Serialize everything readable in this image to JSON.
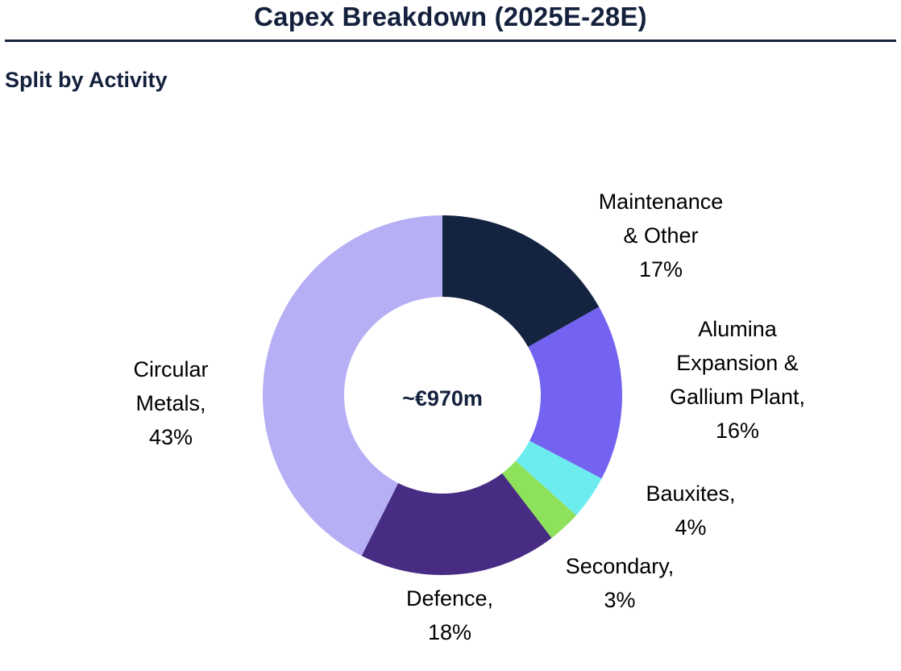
{
  "header": {
    "title": "Capex Breakdown (2025E-28E)",
    "subtitle": "Split by Activity"
  },
  "chart_data": {
    "type": "pie",
    "donut": true,
    "center_label": "~€970m",
    "start": "top",
    "direction": "clockwise",
    "slices": [
      {
        "label_lines": [
          "Maintenance",
          "& Other",
          "17%"
        ],
        "value": 17,
        "color": "#14233f"
      },
      {
        "label_lines": [
          "Alumina",
          "Expansion &",
          "Gallium Plant,",
          "16%"
        ],
        "value": 16,
        "color": "#7462f0"
      },
      {
        "label_lines": [
          "Bauxites,",
          "4%"
        ],
        "value": 4,
        "color": "#6decf0"
      },
      {
        "label_lines": [
          "Secondary,",
          "3%"
        ],
        "value": 3,
        "color": "#8ee15a"
      },
      {
        "label_lines": [
          "Defence,",
          "18%"
        ],
        "value": 18,
        "color": "#482b82"
      },
      {
        "label_lines": [
          "Circular",
          "Metals,",
          "43%"
        ],
        "value": 43,
        "color": "#b7aff5"
      }
    ]
  }
}
